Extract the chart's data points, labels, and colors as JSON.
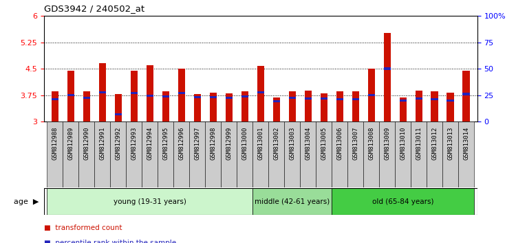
{
  "title": "GDS3942 / 240502_at",
  "samples": [
    "GSM812988",
    "GSM812989",
    "GSM812990",
    "GSM812991",
    "GSM812992",
    "GSM812993",
    "GSM812994",
    "GSM812995",
    "GSM812996",
    "GSM812997",
    "GSM812998",
    "GSM812999",
    "GSM813000",
    "GSM813001",
    "GSM813002",
    "GSM813003",
    "GSM813004",
    "GSM813005",
    "GSM813006",
    "GSM813007",
    "GSM813008",
    "GSM813009",
    "GSM813010",
    "GSM813011",
    "GSM813012",
    "GSM813013",
    "GSM813014"
  ],
  "transformed_counts": [
    3.85,
    4.45,
    3.85,
    4.65,
    3.78,
    4.45,
    4.6,
    3.85,
    4.5,
    3.78,
    3.82,
    3.8,
    3.85,
    4.57,
    3.68,
    3.85,
    3.87,
    3.8,
    3.85,
    3.85,
    4.5,
    5.52,
    3.68,
    3.87,
    3.85,
    3.82,
    4.45
  ],
  "percentile_ranks_y": [
    3.63,
    3.75,
    3.67,
    3.82,
    3.2,
    3.8,
    3.73,
    3.72,
    3.8,
    3.7,
    3.7,
    3.68,
    3.72,
    3.82,
    3.58,
    3.68,
    3.65,
    3.65,
    3.64,
    3.63,
    3.75,
    4.5,
    3.6,
    3.65,
    3.63,
    3.6,
    3.78
  ],
  "groups": [
    {
      "label": "young (19-31 years)",
      "start": 0,
      "end": 13,
      "color": "#ccf5cc"
    },
    {
      "label": "middle (42-61 years)",
      "start": 13,
      "end": 18,
      "color": "#99dd99"
    },
    {
      "label": "old (65-84 years)",
      "start": 18,
      "end": 27,
      "color": "#44cc44"
    }
  ],
  "ylim_left": [
    3.0,
    6.0
  ],
  "ylim_right": [
    0,
    100
  ],
  "yticks_left": [
    3.0,
    3.75,
    4.5,
    5.25,
    6.0
  ],
  "yticks_right": [
    0,
    25,
    50,
    75,
    100
  ],
  "bar_color": "#cc1100",
  "percentile_color": "#2222bb",
  "bar_width": 0.45,
  "xtick_bg": "#cccccc",
  "group_border": "#000000"
}
